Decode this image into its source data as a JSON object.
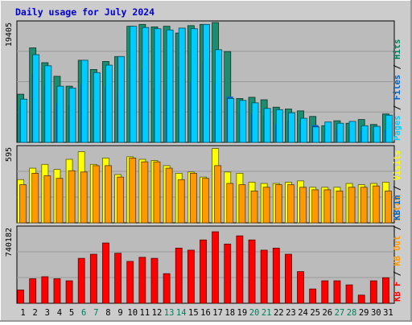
{
  "chart_data": {
    "type": "bar",
    "title": "Daily usage for July 2024",
    "categories": [
      "1",
      "2",
      "3",
      "4",
      "5",
      "6",
      "7",
      "8",
      "9",
      "10",
      "11",
      "12",
      "13",
      "14",
      "15",
      "16",
      "17",
      "18",
      "19",
      "20",
      "21",
      "22",
      "23",
      "24",
      "25",
      "26",
      "27",
      "28",
      "29",
      "30",
      "31"
    ],
    "weekend_days": [
      "6",
      "7",
      "13",
      "14",
      "20",
      "21",
      "27",
      "28"
    ],
    "panels": [
      {
        "name": "top",
        "max_label": "19405",
        "ylim": [
          0,
          19405
        ],
        "right_legend": [
          {
            "text": "Pages",
            "color": "#00ccff"
          },
          {
            "text": " / ",
            "color": "#000000"
          },
          {
            "text": "Files",
            "color": "#0066cc"
          },
          {
            "text": " / ",
            "color": "#000000"
          },
          {
            "text": "Hits",
            "color": "#00805c"
          }
        ],
        "series": [
          {
            "name": "Hits",
            "color": "#1e8c6e",
            "values": [
              7800,
              15300,
              12900,
              10700,
              9100,
              13300,
              11800,
              13100,
              13900,
              18800,
              19100,
              18700,
              18800,
              17700,
              18900,
              19100,
              19405,
              14700,
              7100,
              7300,
              6900,
              5700,
              5400,
              5100,
              4200,
              2700,
              3500,
              3100,
              3700,
              2900,
              4600
            ]
          },
          {
            "name": "Files",
            "color": "#0066cc",
            "values": [
              5800,
              11200,
              9300,
              6300,
              6100,
              9400,
              6900,
              9100,
              8000,
              11900,
              11800,
              8600,
              8500,
              12300,
              9800,
              13200,
              9600,
              7400,
              4900,
              4600,
              4400,
              2900,
              3500,
              3100,
              2800,
              1700,
              2100,
              2200,
              2000,
              1600,
              2100
            ]
          },
          {
            "name": "Pages",
            "color": "#00ccff",
            "values": [
              7000,
              14200,
              12400,
              9100,
              8800,
              13300,
              11300,
              12500,
              13900,
              18800,
              18600,
              18400,
              18200,
              18500,
              18400,
              19100,
              15000,
              7100,
              6800,
              6400,
              5500,
              5300,
              4800,
              3900,
              2500,
              3300,
              3100,
              3400,
              2700,
              2600,
              4400
            ]
          }
        ]
      },
      {
        "name": "middle",
        "max_label": "595",
        "ylim": [
          0,
          595
        ],
        "right_legend": [
          {
            "text": "Sites",
            "color": "#ff9900"
          },
          {
            "text": " / ",
            "color": "#000000"
          },
          {
            "text": "Visits",
            "color": "#ffff00"
          }
        ],
        "series": [
          {
            "name": "Visits",
            "color": "#ffff00",
            "values": [
              340,
              430,
              460,
              420,
              500,
              560,
              460,
              510,
              380,
              520,
              500,
              490,
              450,
              390,
              400,
              360,
              585,
              400,
              390,
              320,
              310,
              310,
              320,
              330,
              280,
              280,
              280,
              310,
              300,
              310,
              320
            ]
          },
          {
            "name": "Sites",
            "color": "#ff9900",
            "values": [
              300,
              390,
              370,
              350,
              410,
              400,
              450,
              450,
              360,
              510,
              480,
              480,
              430,
              340,
              390,
              350,
              450,
              310,
              300,
              250,
              280,
              300,
              300,
              280,
              260,
              260,
              250,
              280,
              280,
              290,
              250
            ]
          }
        ]
      },
      {
        "name": "bottom",
        "max_label": "740182",
        "ylim": [
          0,
          740182
        ],
        "right_legend": [
          {
            "text": "KB F",
            "color": "#ff0000"
          },
          {
            "text": " / ",
            "color": "#000000"
          },
          {
            "text": "KB Out",
            "color": "#ff9900"
          },
          {
            "text": " / ",
            "color": "#000000"
          },
          {
            "text": "KB In",
            "color": "#0066cc"
          }
        ],
        "series": [
          {
            "name": "KB F",
            "color": "#ff0000",
            "values": [
              130000,
              240000,
              260000,
              240000,
              220000,
              440000,
              480000,
              590000,
              490000,
              410000,
              450000,
              440000,
              290000,
              540000,
              520000,
              620000,
              700000,
              580000,
              660000,
              620000,
              520000,
              540000,
              480000,
              310000,
              140000,
              220000,
              220000,
              180000,
              80000,
              220000,
              250000
            ]
          }
        ]
      }
    ]
  }
}
